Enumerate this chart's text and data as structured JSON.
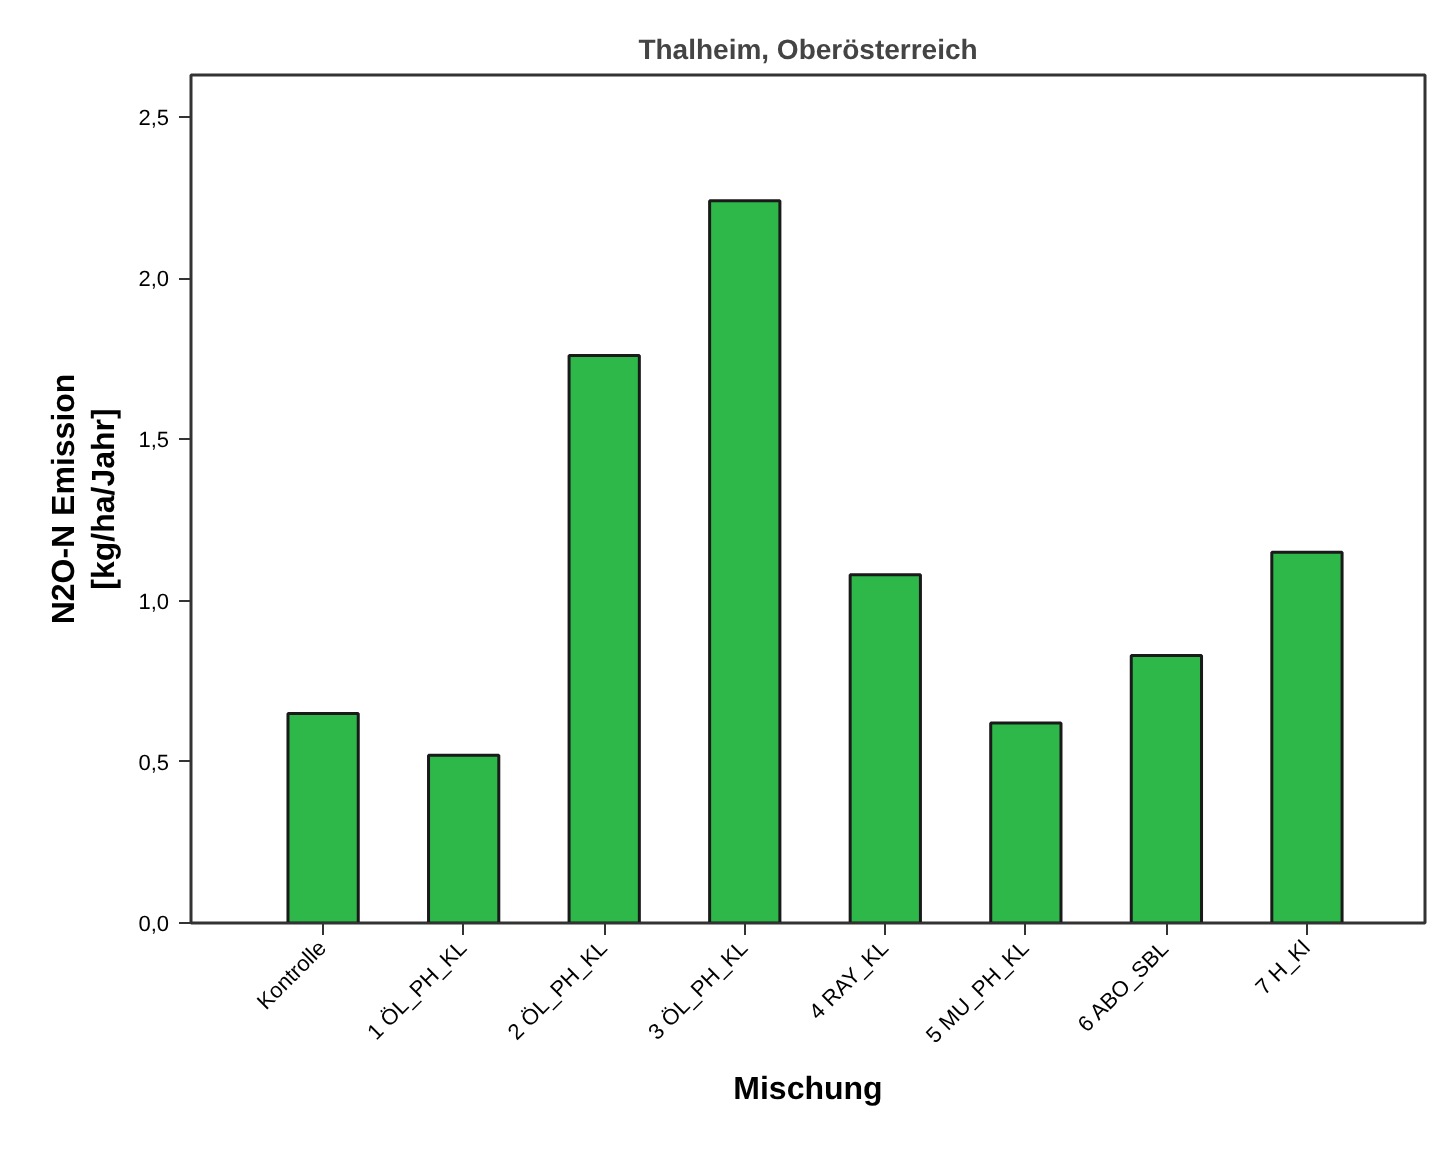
{
  "chart_data": {
    "type": "bar",
    "title": "Thalheim, Oberösterreich",
    "xlabel": "Mischung",
    "ylabel": "N2O-N Emission\n[kg/ha/Jahr]",
    "categories": [
      "Kontrolle",
      "1 ÖL_PH_KL",
      "2 ÖL_PH_KL",
      "3 ÖL_PH_KL",
      "4 RAY_KL",
      "5 MU_PH_KL",
      "6 ABO_SBL",
      "7 H_Kl"
    ],
    "values": [
      0.65,
      0.52,
      1.76,
      2.24,
      1.08,
      0.62,
      0.83,
      1.15
    ],
    "color": "#2eb84a",
    "ylim": [
      0,
      2.63
    ],
    "yticks": [
      {
        "value": 0,
        "label": "0,0"
      },
      {
        "value": 0.5,
        "label": "0,5"
      },
      {
        "value": 1,
        "label": "1,0"
      },
      {
        "value": 1.5,
        "label": "1,5"
      },
      {
        "value": 2,
        "label": "2,0"
      },
      {
        "value": 2.5,
        "label": "2,5"
      }
    ],
    "grid": false
  }
}
